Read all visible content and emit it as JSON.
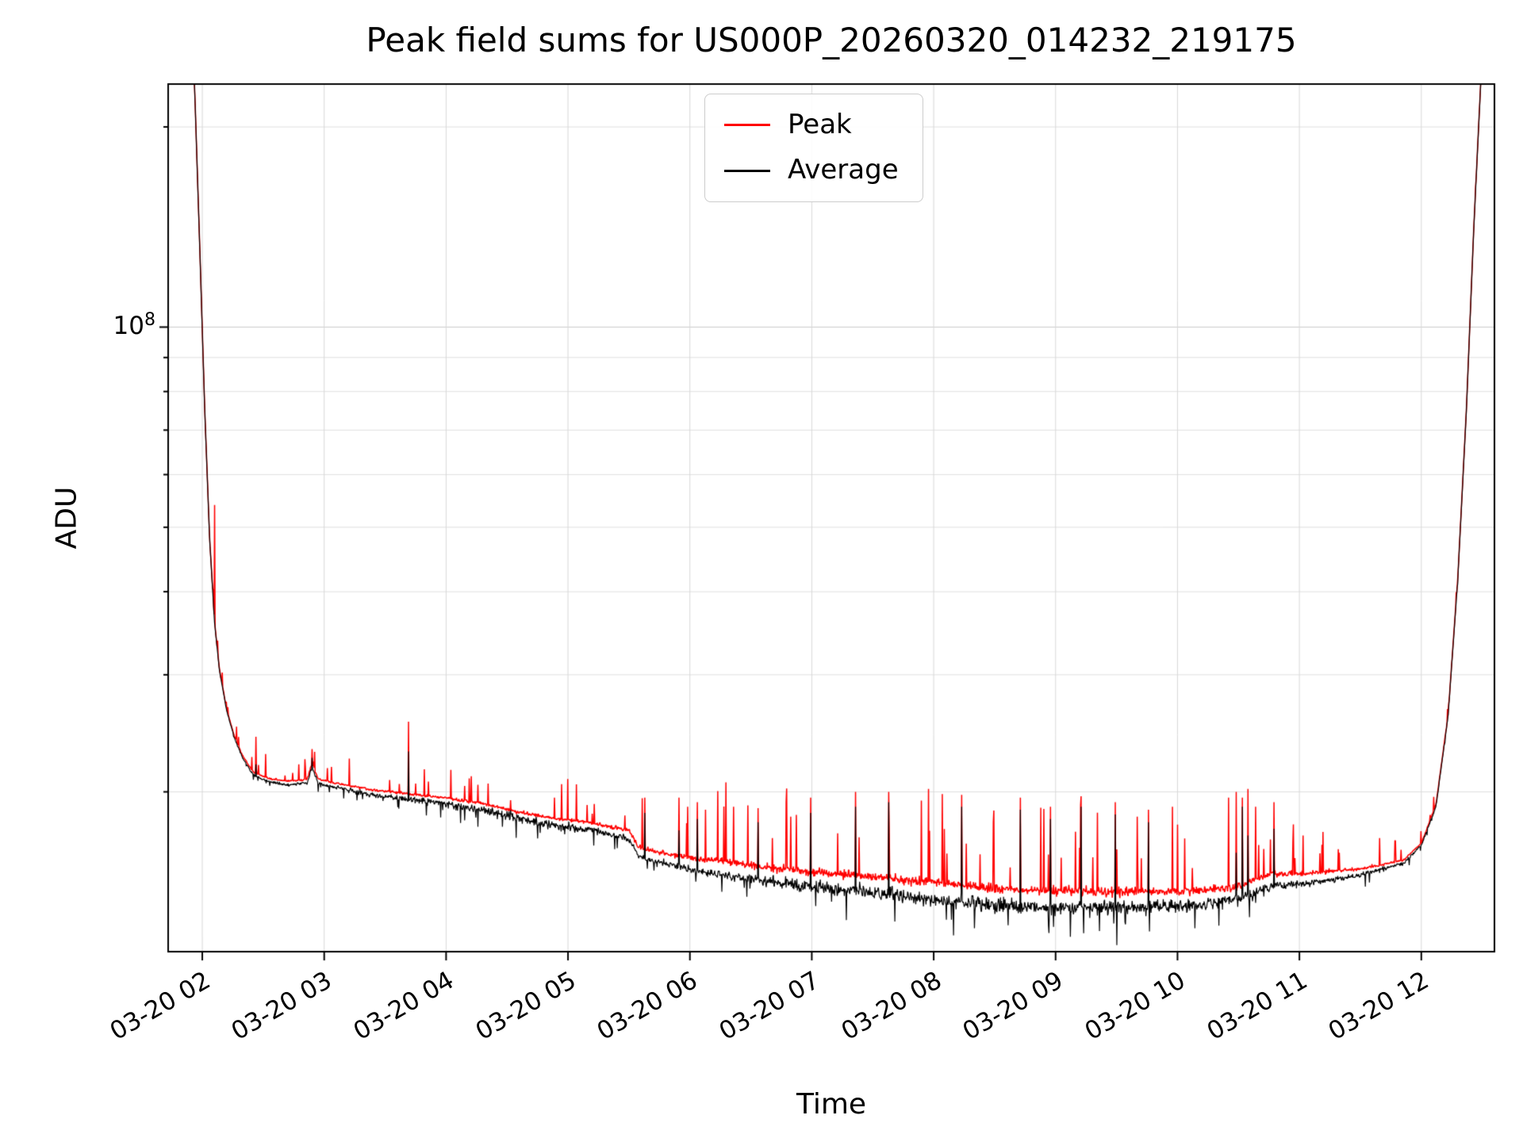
{
  "chart_data": {
    "type": "line",
    "title": "Peak field sums for US000P_20260320_014232_219175",
    "xlabel": "Time",
    "ylabel": "ADU",
    "y_scale": "log",
    "grid": true,
    "background": "#ffffff",
    "x_unit": "hours of day on 03-20",
    "x_range": [
      1.72,
      12.6
    ],
    "y_range": [
      11500000.0,
      232000000.0
    ],
    "y_major_tick": {
      "value": 100000000.0,
      "base": "10",
      "exp": "8"
    },
    "x_ticks": [
      {
        "hour": 2,
        "label": "03-20 02"
      },
      {
        "hour": 3,
        "label": "03-20 03"
      },
      {
        "hour": 4,
        "label": "03-20 04"
      },
      {
        "hour": 5,
        "label": "03-20 05"
      },
      {
        "hour": 6,
        "label": "03-20 06"
      },
      {
        "hour": 7,
        "label": "03-20 07"
      },
      {
        "hour": 8,
        "label": "03-20 08"
      },
      {
        "hour": 9,
        "label": "03-20 09"
      },
      {
        "hour": 10,
        "label": "03-20 10"
      },
      {
        "hour": 11,
        "label": "03-20 11"
      },
      {
        "hour": 12,
        "label": "03-20 12"
      }
    ],
    "legend_position": "top-center",
    "series": [
      {
        "name": "Peak",
        "color": "#ff0000"
      },
      {
        "name": "Average",
        "color": "#000000"
      }
    ],
    "trend_anchors_avg": [
      [
        1.72,
        420000000.0
      ],
      [
        1.9,
        340000000.0
      ],
      [
        1.94,
        220000000.0
      ],
      [
        1.98,
        130000000.0
      ],
      [
        2.02,
        75000000.0
      ],
      [
        2.06,
        48000000.0
      ],
      [
        2.1,
        36000000.0
      ],
      [
        2.14,
        30500000.0
      ],
      [
        2.2,
        26500000.0
      ],
      [
        2.26,
        24200000.0
      ],
      [
        2.33,
        22500000.0
      ],
      [
        2.42,
        21200000.0
      ],
      [
        2.55,
        20700000.0
      ],
      [
        2.7,
        20500000.0
      ],
      [
        2.86,
        20600000.0
      ],
      [
        2.9,
        21800000.0
      ],
      [
        2.95,
        20600000.0
      ],
      [
        3.1,
        20300000.0
      ],
      [
        3.4,
        19800000.0
      ],
      [
        3.7,
        19500000.0
      ],
      [
        4.0,
        19200000.0
      ],
      [
        4.3,
        18800000.0
      ],
      [
        4.6,
        18200000.0
      ],
      [
        4.9,
        17800000.0
      ],
      [
        5.2,
        17500000.0
      ],
      [
        5.5,
        17000000.0
      ],
      [
        5.58,
        16000000.0
      ],
      [
        5.8,
        15600000.0
      ],
      [
        6.0,
        15300000.0
      ],
      [
        6.3,
        15000000.0
      ],
      [
        6.6,
        14700000.0
      ],
      [
        7.0,
        14400000.0
      ],
      [
        7.5,
        14100000.0
      ],
      [
        8.0,
        13800000.0
      ],
      [
        8.5,
        13500000.0
      ],
      [
        9.0,
        13400000.0
      ],
      [
        9.6,
        13400000.0
      ],
      [
        10.1,
        13500000.0
      ],
      [
        10.45,
        13700000.0
      ],
      [
        10.75,
        14400000.0
      ],
      [
        11.1,
        14600000.0
      ],
      [
        11.5,
        15000000.0
      ],
      [
        11.85,
        15600000.0
      ],
      [
        12.0,
        16600000.0
      ],
      [
        12.12,
        19000000.0
      ],
      [
        12.22,
        26000000.0
      ],
      [
        12.3,
        42000000.0
      ],
      [
        12.37,
        75000000.0
      ],
      [
        12.43,
        140000000.0
      ],
      [
        12.5,
        260000000.0
      ],
      [
        12.6,
        420000000.0
      ]
    ],
    "peak_ratio_anchors": [
      [
        1.72,
        1.002
      ],
      [
        2.2,
        1.006
      ],
      [
        2.6,
        1.012
      ],
      [
        3.2,
        1.016
      ],
      [
        4.0,
        1.02
      ],
      [
        4.8,
        1.025
      ],
      [
        5.5,
        1.028
      ],
      [
        5.9,
        1.038
      ],
      [
        6.4,
        1.048
      ],
      [
        7.2,
        1.055
      ],
      [
        8.2,
        1.06
      ],
      [
        9.2,
        1.058
      ],
      [
        10.2,
        1.05
      ],
      [
        10.8,
        1.042
      ],
      [
        11.3,
        1.028
      ],
      [
        11.7,
        1.015
      ],
      [
        12.0,
        1.008
      ],
      [
        12.6,
        1.002
      ]
    ],
    "noise_avg_anchors": [
      [
        1.72,
        0.0008
      ],
      [
        2.3,
        0.0025
      ],
      [
        3.0,
        0.005
      ],
      [
        3.8,
        0.009
      ],
      [
        4.5,
        0.013
      ],
      [
        5.1,
        0.011
      ],
      [
        5.6,
        0.007
      ],
      [
        6.1,
        0.011
      ],
      [
        6.8,
        0.015
      ],
      [
        7.6,
        0.018
      ],
      [
        8.6,
        0.02
      ],
      [
        9.6,
        0.019
      ],
      [
        10.4,
        0.016
      ],
      [
        11.0,
        0.011
      ],
      [
        11.6,
        0.007
      ],
      [
        12.1,
        0.003
      ],
      [
        12.6,
        0.001
      ]
    ],
    "noise_peak_anchors": [
      [
        1.72,
        0.0008
      ],
      [
        2.3,
        0.003
      ],
      [
        3.0,
        0.005
      ],
      [
        3.8,
        0.007
      ],
      [
        4.6,
        0.008
      ],
      [
        5.4,
        0.009
      ],
      [
        5.9,
        0.014
      ],
      [
        6.5,
        0.018
      ],
      [
        7.5,
        0.02
      ],
      [
        8.5,
        0.021
      ],
      [
        9.5,
        0.02
      ],
      [
        10.3,
        0.018
      ],
      [
        10.9,
        0.013
      ],
      [
        11.4,
        0.008
      ],
      [
        11.9,
        0.004
      ],
      [
        12.6,
        0.001
      ]
    ],
    "spikes": [
      [
        2.1,
        54000000.0,
        null
      ],
      [
        2.44,
        24200000.0,
        22000000.0
      ],
      [
        2.52,
        22800000.0,
        null
      ],
      [
        2.79,
        22000000.0,
        null
      ],
      [
        2.84,
        22400000.0,
        null
      ],
      [
        2.9,
        23200000.0,
        22500000.0
      ],
      [
        3.06,
        21800000.0,
        null
      ],
      [
        3.69,
        25500000.0,
        23000000.0
      ],
      [
        4.26,
        20500000.0,
        null
      ],
      [
        5.63,
        19600000.0,
        18600000.0
      ],
      [
        5.91,
        19600000.0,
        17500000.0
      ],
      [
        5.98,
        19000000.0,
        null
      ],
      [
        6.06,
        19300000.0,
        18200000.0
      ],
      [
        6.13,
        18800000.0,
        null
      ],
      [
        6.36,
        19000000.0,
        null
      ],
      [
        6.56,
        18900000.0,
        18000000.0
      ],
      [
        6.79,
        19300000.0,
        null
      ],
      [
        6.99,
        19600000.0,
        18600000.0
      ],
      [
        7.36,
        20000000.0,
        19000000.0
      ],
      [
        7.63,
        20000000.0,
        19300000.0
      ],
      [
        8.23,
        19800000.0,
        19000000.0
      ],
      [
        8.49,
        18000000.0,
        null
      ],
      [
        8.71,
        19600000.0,
        18800000.0
      ],
      [
        8.96,
        19000000.0,
        18200000.0
      ],
      [
        9.21,
        19700000.0,
        19000000.0
      ],
      [
        9.49,
        19300000.0,
        18500000.0
      ],
      [
        9.76,
        18800000.0,
        18000000.0
      ],
      [
        9.96,
        19000000.0,
        null
      ],
      [
        10.42,
        19600000.0,
        null
      ],
      [
        10.48,
        20000000.0,
        16200000.0
      ],
      [
        10.53,
        19600000.0,
        19000000.0
      ],
      [
        10.58,
        20200000.0,
        17200000.0
      ],
      [
        10.64,
        19000000.0,
        null
      ],
      [
        10.79,
        19300000.0,
        17600000.0
      ],
      [
        11.03,
        17200000.0,
        null
      ]
    ]
  }
}
